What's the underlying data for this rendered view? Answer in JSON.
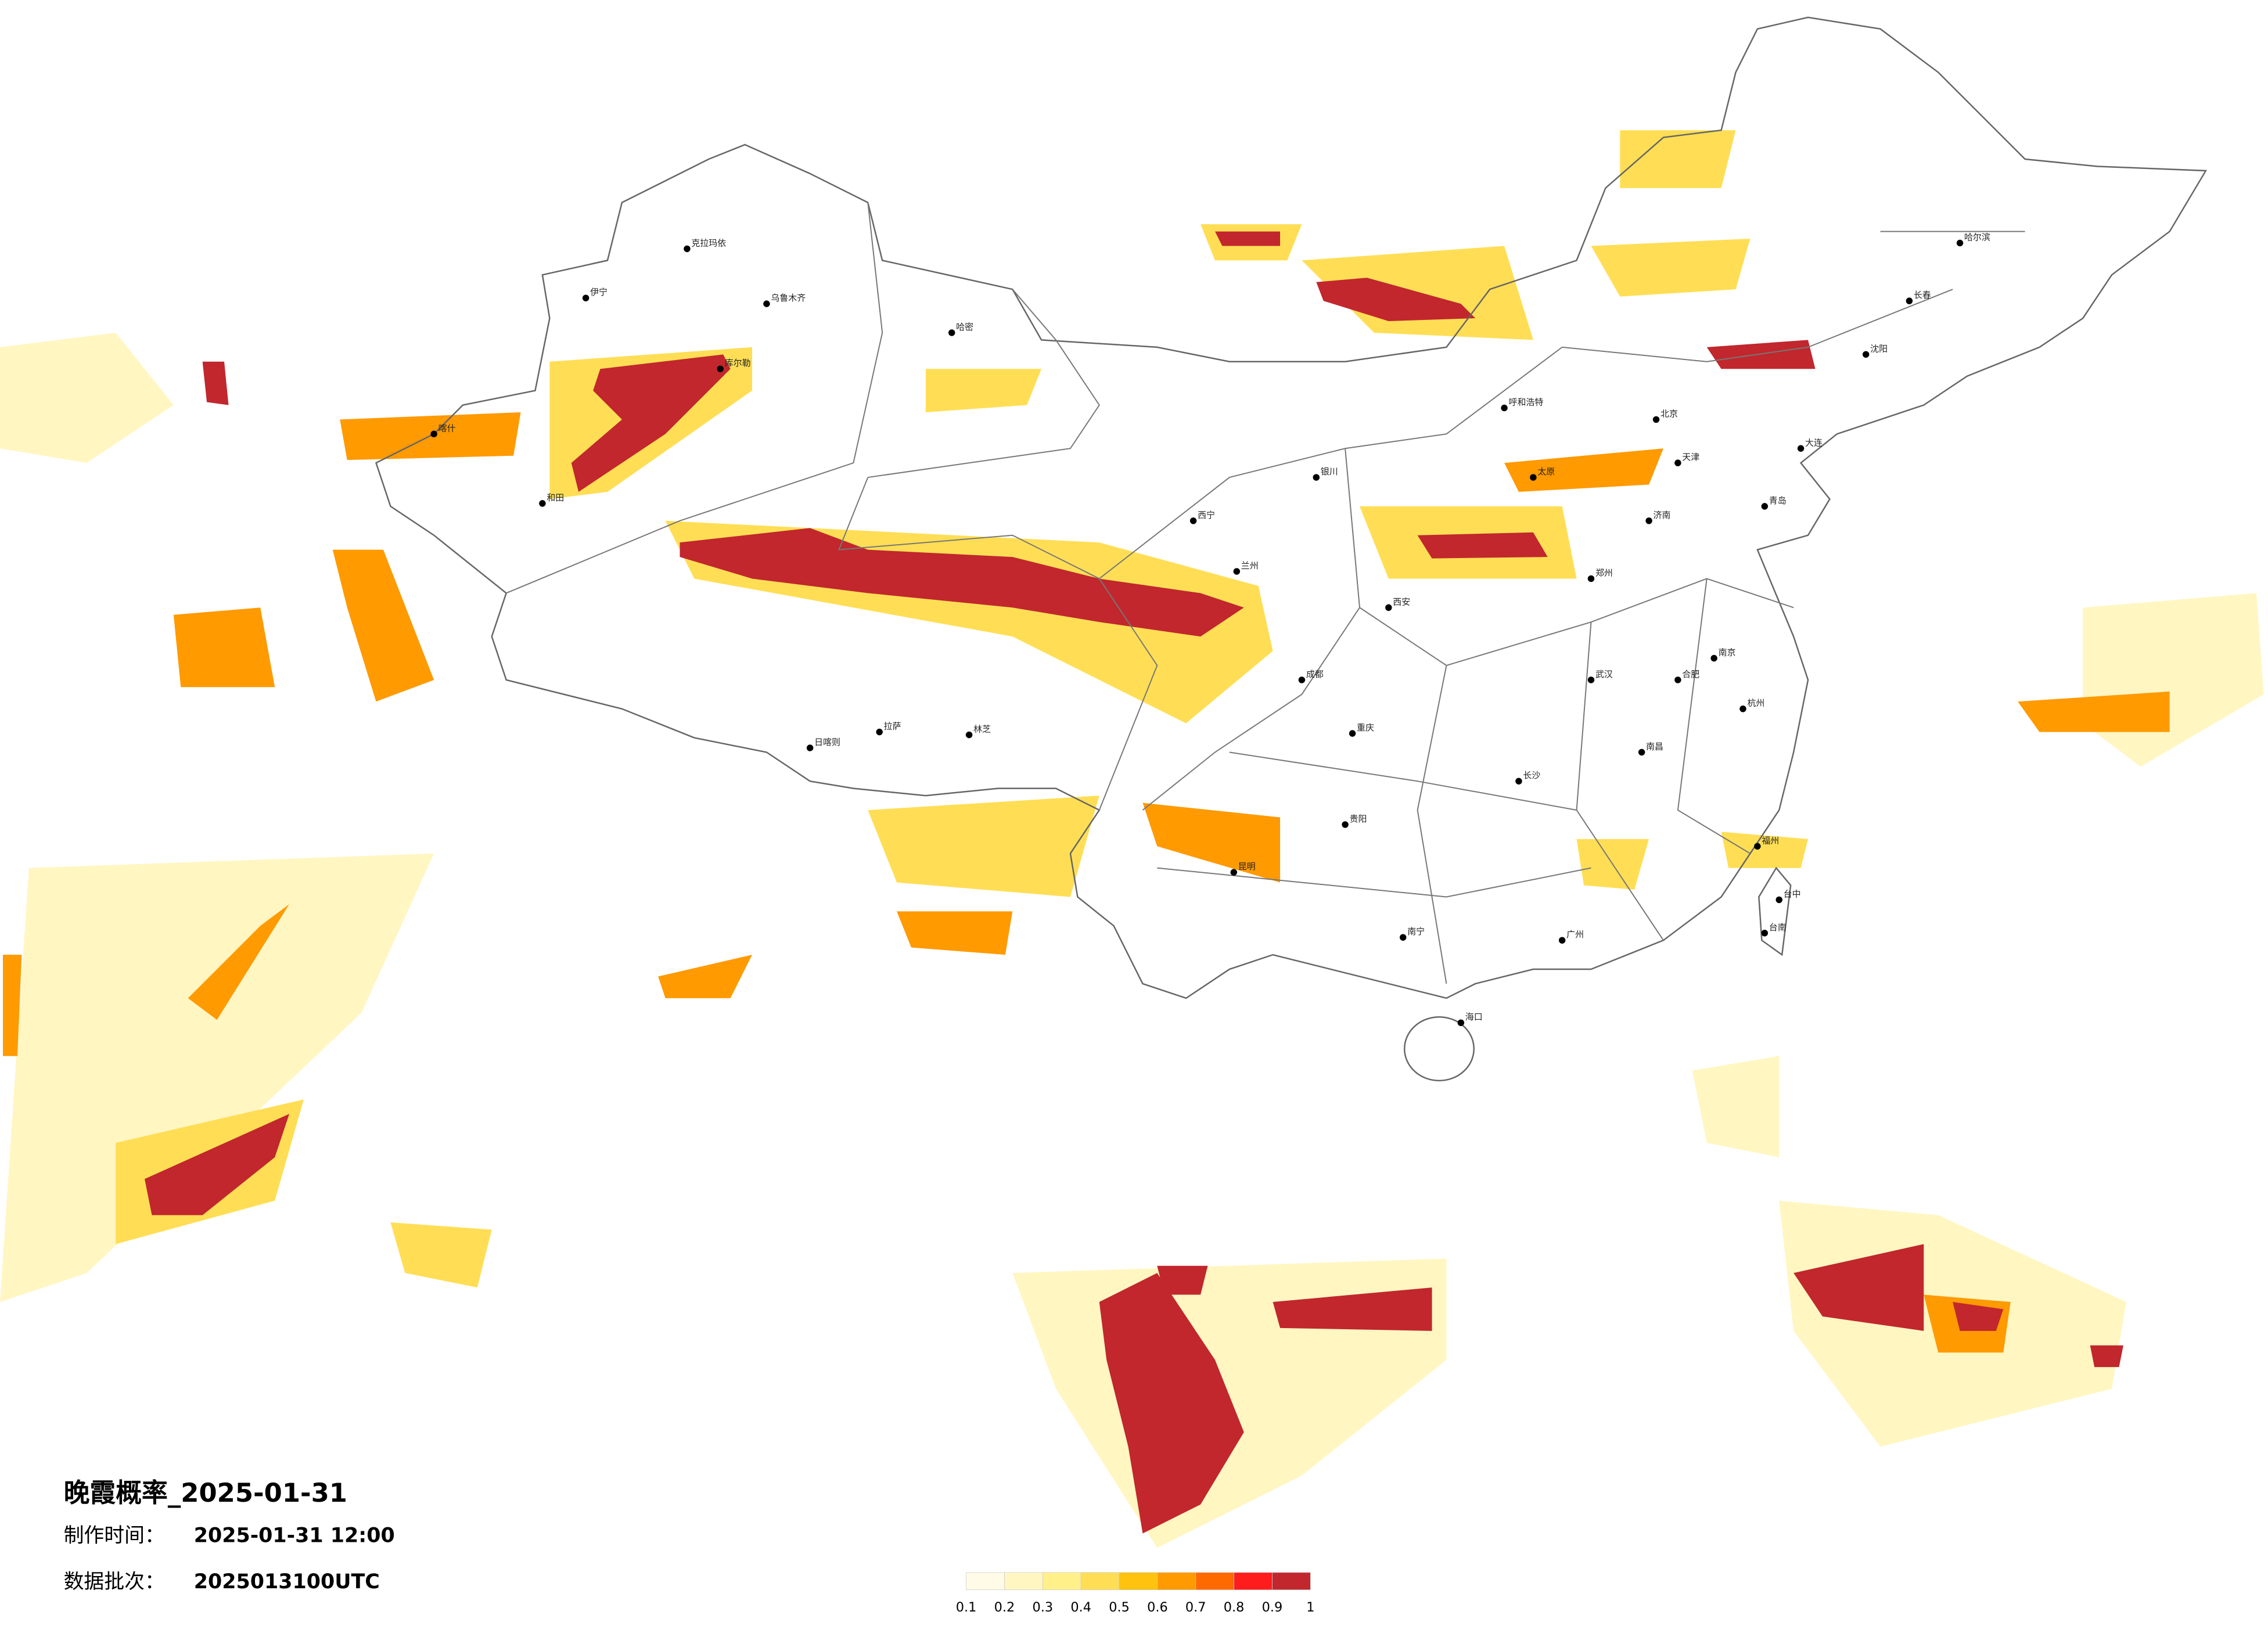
{
  "map": {
    "title": "晚霞概率_2025-01-31",
    "made_label": "制作时间：",
    "made_time": "2025-01-31 12:00",
    "batch_label": "数据批次：",
    "batch": "2025013100UTC"
  },
  "legend": {
    "colors": [
      "#fffbe6",
      "#fff6c2",
      "#fff08a",
      "#ffde55",
      "#ffc20e",
      "#ff9a00",
      "#ff6a00",
      "#ff1c1c",
      "#c1272d"
    ],
    "ticks": [
      0.1,
      0.2,
      0.3,
      0.4,
      0.5,
      0.6,
      0.7,
      0.8,
      0.9,
      1
    ]
  },
  "cities": [
    "克拉玛依",
    "乌鲁木齐",
    "伊宁",
    "哈密",
    "库尔勒",
    "和田",
    "喀什",
    "日喀则",
    "拉萨",
    "林芝",
    "西宁",
    "兰州",
    "银川",
    "呼和浩特",
    "北京",
    "天津",
    "太原",
    "济南",
    "郑州",
    "西安",
    "成都",
    "重庆",
    "贵阳",
    "昆明",
    "南宁",
    "海口",
    "广州",
    "长沙",
    "武汉",
    "南京",
    "杭州",
    "福州",
    "南昌",
    "合肥",
    "沈阳",
    "长春",
    "哈尔滨",
    "大连",
    "青岛",
    "台中",
    "台南"
  ]
}
